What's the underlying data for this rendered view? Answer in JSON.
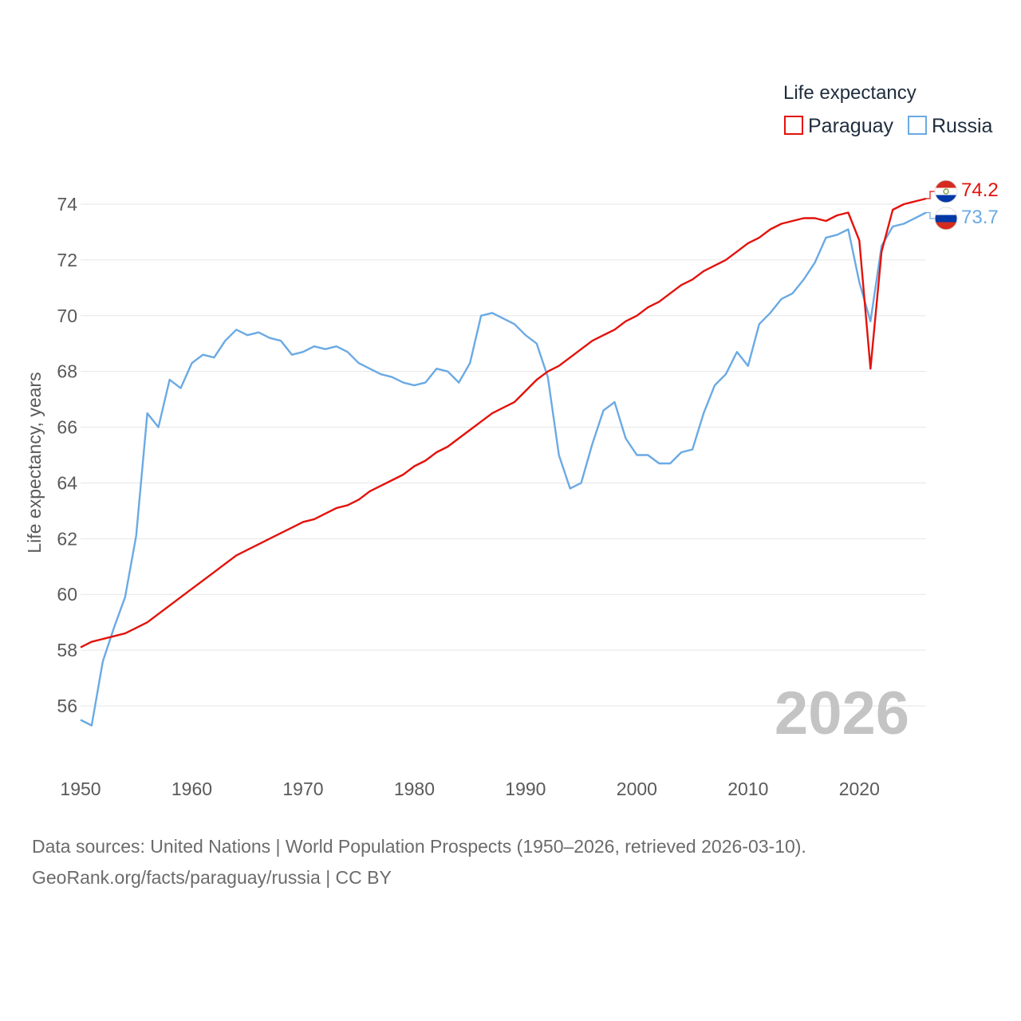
{
  "source": {
    "line1": "Data sources: United Nations | World Population Prospects (1950–2026, retrieved 2026-03-10).",
    "line2": "GeoRank.org/facts/paraguay/russia | CC BY"
  },
  "chart_data": {
    "type": "line",
    "title": "",
    "xlabel": "",
    "ylabel": "Life expectancy, years",
    "legend_title": "Life expectancy",
    "legend_position": "top-right",
    "current_year_label": "2026",
    "xlim": [
      1950,
      2026
    ],
    "ylim": [
      54.5,
      75.2
    ],
    "x_ticks": [
      1950,
      1960,
      1970,
      1980,
      1990,
      2000,
      2010,
      2020
    ],
    "y_ticks": [
      56,
      58,
      60,
      62,
      64,
      66,
      68,
      70,
      72,
      74
    ],
    "grid": true,
    "x": [
      1950,
      1951,
      1952,
      1953,
      1954,
      1955,
      1956,
      1957,
      1958,
      1959,
      1960,
      1961,
      1962,
      1963,
      1964,
      1965,
      1966,
      1967,
      1968,
      1969,
      1970,
      1971,
      1972,
      1973,
      1974,
      1975,
      1976,
      1977,
      1978,
      1979,
      1980,
      1981,
      1982,
      1983,
      1984,
      1985,
      1986,
      1987,
      1988,
      1989,
      1990,
      1991,
      1992,
      1993,
      1994,
      1995,
      1996,
      1997,
      1998,
      1999,
      2000,
      2001,
      2002,
      2003,
      2004,
      2005,
      2006,
      2007,
      2008,
      2009,
      2010,
      2011,
      2012,
      2013,
      2014,
      2015,
      2016,
      2017,
      2018,
      2019,
      2020,
      2021,
      2022,
      2023,
      2024,
      2025,
      2026
    ],
    "series": [
      {
        "name": "Paraguay",
        "color": "#e3120b",
        "end_label": "74.2",
        "flag": "paraguay-flag-icon",
        "values": [
          58.1,
          58.3,
          58.4,
          58.5,
          58.6,
          58.8,
          59.0,
          59.3,
          59.6,
          59.9,
          60.2,
          60.5,
          60.8,
          61.1,
          61.4,
          61.6,
          61.8,
          62.0,
          62.2,
          62.4,
          62.6,
          62.7,
          62.9,
          63.1,
          63.2,
          63.4,
          63.7,
          63.9,
          64.1,
          64.3,
          64.6,
          64.8,
          65.1,
          65.3,
          65.6,
          65.9,
          66.2,
          66.5,
          66.7,
          66.9,
          67.3,
          67.7,
          68.0,
          68.2,
          68.5,
          68.8,
          69.1,
          69.3,
          69.5,
          69.8,
          70.0,
          70.3,
          70.5,
          70.8,
          71.1,
          71.3,
          71.6,
          71.8,
          72.0,
          72.3,
          72.6,
          72.8,
          73.1,
          73.3,
          73.4,
          73.5,
          73.5,
          73.4,
          73.6,
          73.7,
          72.7,
          68.1,
          72.3,
          73.8,
          74.0,
          74.1,
          74.2
        ]
      },
      {
        "name": "Russia",
        "color": "#6aaae4",
        "end_label": "73.7",
        "flag": "russia-flag-icon",
        "values": [
          55.5,
          55.3,
          57.6,
          58.8,
          59.9,
          62.1,
          66.5,
          66.0,
          67.7,
          67.4,
          68.3,
          68.6,
          68.5,
          69.1,
          69.5,
          69.3,
          69.4,
          69.2,
          69.1,
          68.6,
          68.7,
          68.9,
          68.8,
          68.9,
          68.7,
          68.3,
          68.1,
          67.9,
          67.8,
          67.6,
          67.5,
          67.6,
          68.1,
          68.0,
          67.6,
          68.3,
          70.0,
          70.1,
          69.9,
          69.7,
          69.3,
          69.0,
          67.8,
          65.0,
          63.8,
          64.0,
          65.4,
          66.6,
          66.9,
          65.6,
          65.0,
          65.0,
          64.7,
          64.7,
          65.1,
          65.2,
          66.5,
          67.5,
          67.9,
          68.7,
          68.2,
          69.7,
          70.1,
          70.6,
          70.8,
          71.3,
          71.9,
          72.8,
          72.9,
          73.1,
          71.2,
          69.8,
          72.5,
          73.2,
          73.3,
          73.5,
          73.7
        ]
      }
    ]
  }
}
